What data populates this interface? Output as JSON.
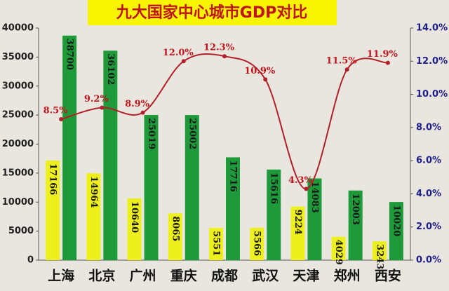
{
  "chart_data": {
    "type": "bar",
    "title": "九大国家中心城市GDP对比",
    "categories": [
      "上海",
      "北京",
      "广州",
      "重庆",
      "成都",
      "武汉",
      "天津",
      "郑州",
      "西安"
    ],
    "series": [
      {
        "color": "#eef01c",
        "values": [
          17166,
          14964,
          10640,
          8065,
          5551,
          5566,
          9224,
          4029,
          3243
        ]
      },
      {
        "color": "#1f9a3a",
        "values": [
          38700,
          36102,
          25019,
          25002,
          17716,
          15616,
          14083,
          12003,
          10020
        ]
      },
      {
        "type": "line",
        "axis": "y2",
        "color": "#b3202a",
        "values": [
          8.5,
          9.2,
          8.9,
          12.0,
          12.3,
          10.9,
          4.3,
          11.5,
          11.9
        ],
        "value_labels": [
          "8.5%",
          "9.2%",
          "8.9%",
          "12.0%",
          "12.3%",
          "10.9%",
          "4.3%",
          "11.5%",
          "11.9%"
        ]
      }
    ],
    "ylim": [
      0,
      40000
    ],
    "yticks": [
      0,
      5000,
      10000,
      15000,
      20000,
      25000,
      30000,
      35000,
      40000
    ],
    "y2lim": [
      0,
      14
    ],
    "y2ticks": [
      {
        "value": 0,
        "label": "0.0%"
      },
      {
        "value": 2,
        "label": "2.0%"
      },
      {
        "value": 4,
        "label": "4.0%"
      },
      {
        "value": 6,
        "label": "6.0%"
      },
      {
        "value": 8,
        "label": "8.0%"
      },
      {
        "value": 10,
        "label": "10.0%"
      },
      {
        "value": 12,
        "label": "12.0%"
      },
      {
        "value": 14,
        "label": "14.0%"
      }
    ]
  }
}
